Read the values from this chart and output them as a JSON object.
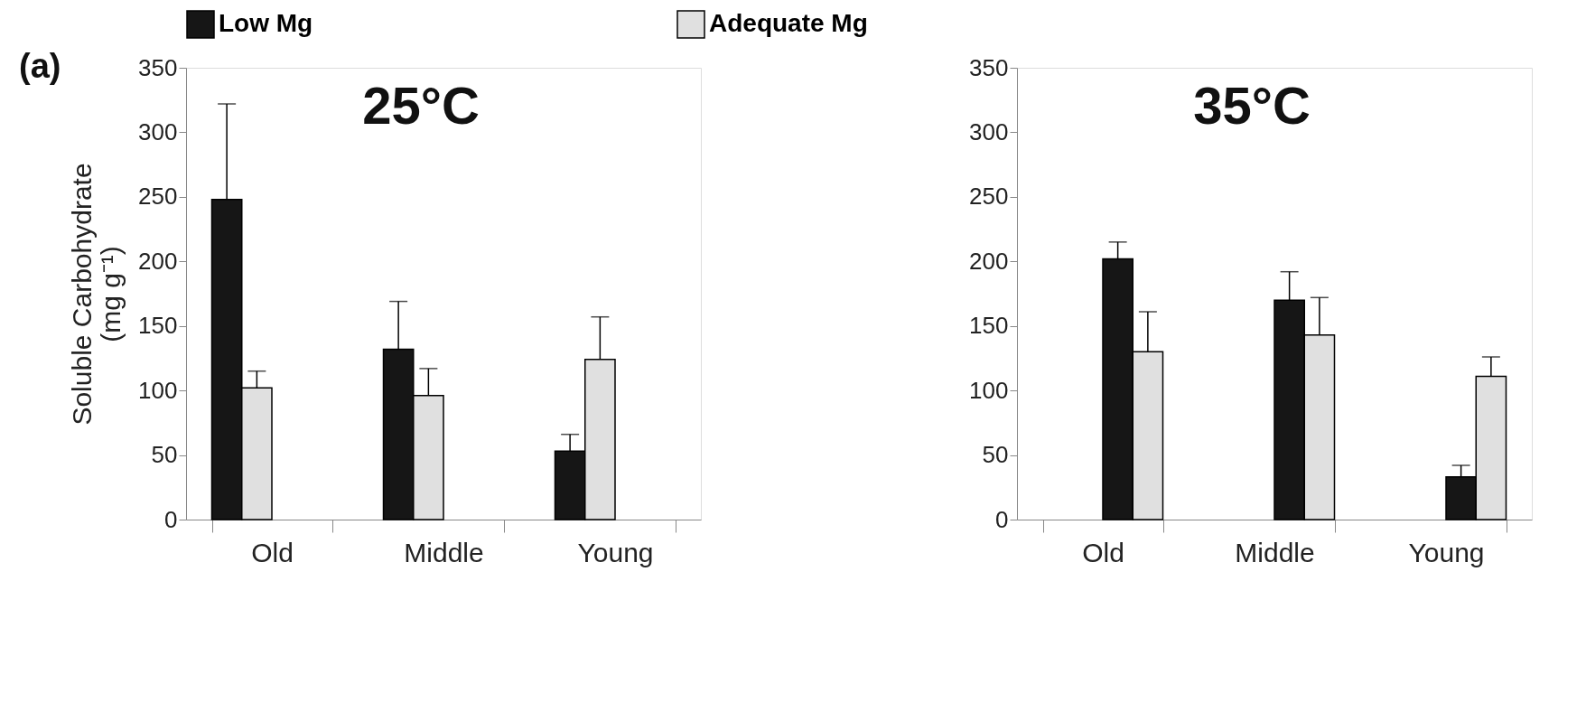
{
  "chart_data": [
    {
      "type": "bar",
      "title": "25°C",
      "ylabel": "Soluble Carbohydrate\n(mg g⁻¹)",
      "categories": [
        "Old",
        "Middle",
        "Young"
      ],
      "ylim": [
        0,
        350
      ],
      "yticks": [
        0,
        50,
        100,
        150,
        200,
        250,
        300,
        350
      ],
      "grid": false,
      "legend": "top",
      "annotations": [
        "(a)"
      ],
      "series": [
        {
          "name": "Low Mg",
          "color": "#161616",
          "values": [
            248,
            132,
            53
          ],
          "errors": [
            [
              248,
              322
            ],
            [
              132,
              169
            ],
            [
              53,
              66
            ]
          ]
        },
        {
          "name": "Adequate Mg",
          "color": "#e0e0e0",
          "values": [
            102,
            96,
            124
          ],
          "errors": [
            [
              102,
              115
            ],
            [
              96,
              117
            ],
            [
              124,
              157
            ]
          ]
        }
      ]
    },
    {
      "type": "bar",
      "title": "35°C",
      "categories": [
        "Old",
        "Middle",
        "Young"
      ],
      "ylim": [
        0,
        350
      ],
      "yticks": [
        0,
        50,
        100,
        150,
        200,
        250,
        300,
        350
      ],
      "grid": false,
      "legend": false,
      "series": [
        {
          "color": "#161616",
          "values": [
            202,
            170,
            33
          ],
          "errors": [
            [
              202,
              215
            ],
            [
              170,
              192
            ],
            [
              33,
              42
            ]
          ]
        },
        {
          "color": "#e0e0e0",
          "values": [
            130,
            143,
            111
          ],
          "errors": [
            [
              130,
              161
            ],
            [
              143,
              172
            ],
            [
              111,
              126
            ]
          ]
        }
      ]
    }
  ]
}
